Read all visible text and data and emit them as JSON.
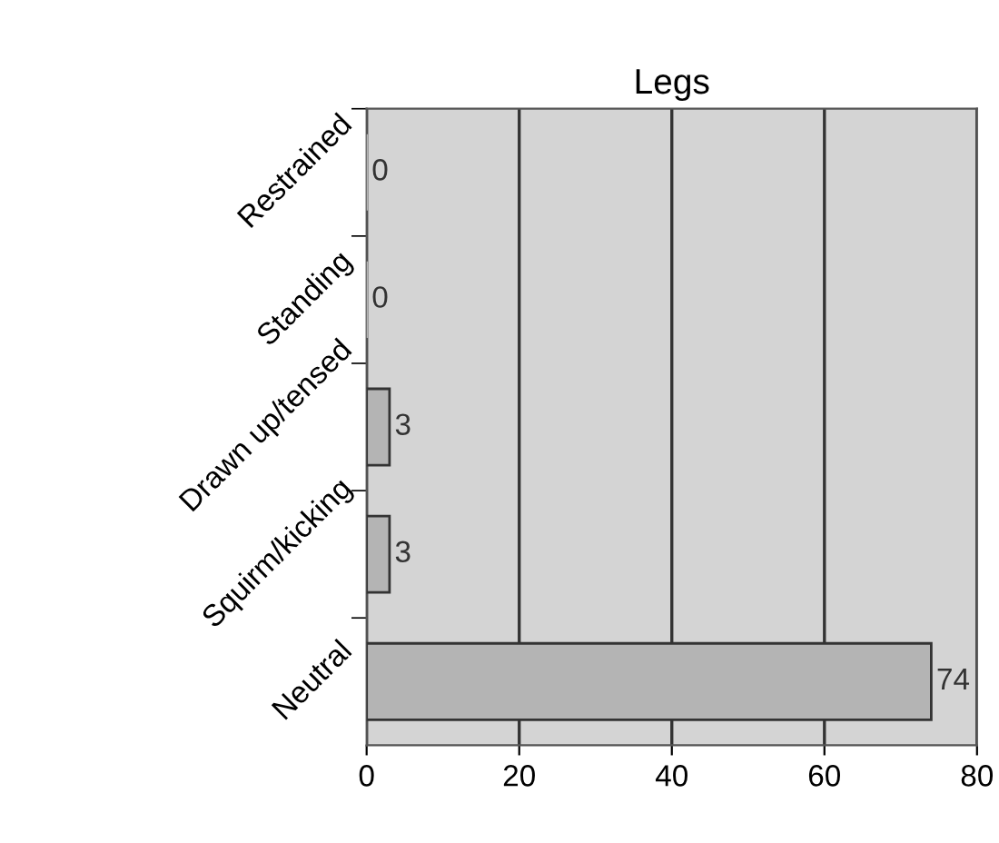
{
  "chart_data": {
    "type": "bar",
    "orientation": "horizontal",
    "title": "Legs",
    "categories": [
      "Restrained",
      "Standing",
      "Drawn up/tensed",
      "Squirm/kicking",
      "Neutral"
    ],
    "values": [
      0,
      0,
      3,
      3,
      74
    ],
    "color": "#b4b4b4",
    "xlim": [
      0,
      80
    ],
    "xticks": [
      0,
      20,
      40,
      60,
      80
    ],
    "grid": "x",
    "data_labels": true
  }
}
